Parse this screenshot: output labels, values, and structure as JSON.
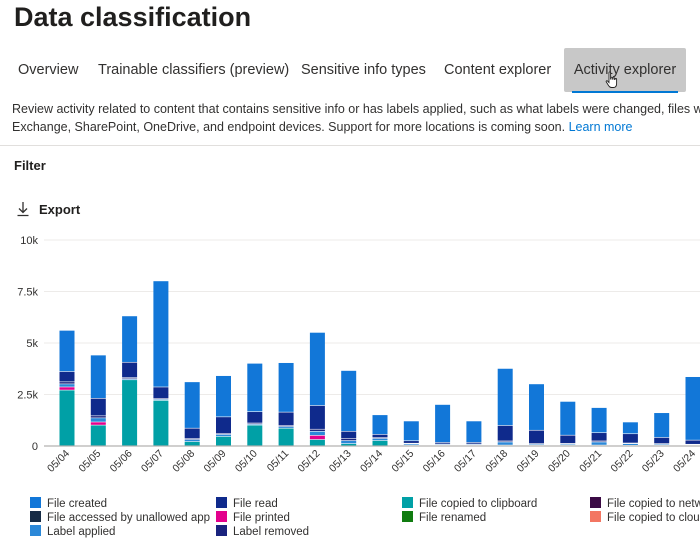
{
  "page": {
    "title": "Data classification"
  },
  "tabs": [
    {
      "label": "Overview",
      "active": false
    },
    {
      "label": "Trainable classifiers (preview)",
      "active": false
    },
    {
      "label": "Sensitive info types",
      "active": false
    },
    {
      "label": "Content explorer",
      "active": false
    },
    {
      "label": "Activity explorer",
      "active": true
    }
  ],
  "description": {
    "line1": "Review activity related to content that contains sensitive info or has labels applied, such as what labels were changed, files were",
    "line2": "Exchange, SharePoint, OneDrive, and endpoint devices. Support for more locations is coming soon.",
    "link": "Learn more"
  },
  "toolbar": {
    "filter_label": "Filter",
    "export_label": "Export",
    "export_icon": "download-icon"
  },
  "colors": {
    "accent": "#0078d4",
    "file_created": "#1277d8",
    "file_read": "#0f2a8c",
    "file_copied_clipboard": "#00a0a6",
    "file_copied_network": "#3b0a45",
    "file_accessed_unallowed": "#162b45",
    "file_printed": "#e3008c",
    "file_renamed": "#107c10",
    "file_copied_cloud": "#f37662",
    "label_applied": "#2b88d8",
    "label_removed": "#1a237e"
  },
  "chart_data": {
    "type": "bar",
    "stacked": true,
    "yticks": [
      "0",
      "2.5k",
      "5k",
      "7.5k",
      "10k"
    ],
    "ylim": [
      0,
      10000
    ],
    "grid": true,
    "legend_position": "bottom",
    "categories": [
      "05/04",
      "05/05",
      "05/06",
      "05/07",
      "05/08",
      "05/09",
      "05/10",
      "05/11",
      "05/12",
      "05/13",
      "05/14",
      "05/15",
      "05/16",
      "05/17",
      "05/18",
      "05/19",
      "05/20",
      "05/21",
      "05/22",
      "05/23",
      "05/24"
    ],
    "series": [
      {
        "name": "File copied to clipboard",
        "color_key": "file_copied_clipboard",
        "values": [
          2700,
          1000,
          3200,
          2200,
          200,
          450,
          1000,
          850,
          300,
          100,
          250,
          30,
          20,
          20,
          30,
          20,
          30,
          30,
          20,
          20,
          20
        ]
      },
      {
        "name": "File printed",
        "color_key": "file_printed",
        "values": [
          150,
          150,
          0,
          0,
          0,
          0,
          0,
          0,
          200,
          0,
          0,
          0,
          0,
          0,
          0,
          0,
          0,
          0,
          0,
          0,
          0
        ]
      },
      {
        "name": "Label applied",
        "color_key": "label_applied",
        "values": [
          150,
          200,
          50,
          50,
          100,
          100,
          50,
          80,
          200,
          150,
          100,
          60,
          40,
          40,
          150,
          50,
          50,
          150,
          80,
          50,
          30
        ]
      },
      {
        "name": "Label removed",
        "color_key": "label_removed",
        "values": [
          100,
          100,
          50,
          50,
          50,
          50,
          50,
          50,
          100,
          100,
          50,
          30,
          20,
          20,
          50,
          30,
          30,
          50,
          30,
          30,
          20
        ]
      },
      {
        "name": "File read",
        "color_key": "file_read",
        "values": [
          500,
          850,
          750,
          550,
          500,
          800,
          550,
          650,
          1150,
          350,
          150,
          120,
          80,
          80,
          750,
          650,
          400,
          400,
          450,
          300,
          200
        ]
      },
      {
        "name": "File created",
        "color_key": "file_created",
        "values": [
          2000,
          2100,
          2250,
          5150,
          2250,
          2000,
          2350,
          2400,
          3550,
          2950,
          950,
          960,
          1840,
          1040,
          2770,
          2250,
          1640,
          1220,
          570,
          1200,
          3080
        ]
      }
    ]
  },
  "legend": [
    {
      "label": "File created",
      "color_key": "file_created"
    },
    {
      "label": "File read",
      "color_key": "file_read"
    },
    {
      "label": "File copied to clipboard",
      "color_key": "file_copied_clipboard"
    },
    {
      "label": "File copied to netwo",
      "color_key": "file_copied_network"
    },
    {
      "label": "File accessed by unallowed app",
      "color_key": "file_accessed_unallowed"
    },
    {
      "label": "File printed",
      "color_key": "file_printed"
    },
    {
      "label": "File renamed",
      "color_key": "file_renamed"
    },
    {
      "label": "File copied to cloud",
      "color_key": "file_copied_cloud"
    },
    {
      "label": "Label applied",
      "color_key": "label_applied"
    },
    {
      "label": "Label removed",
      "color_key": "label_removed"
    }
  ]
}
